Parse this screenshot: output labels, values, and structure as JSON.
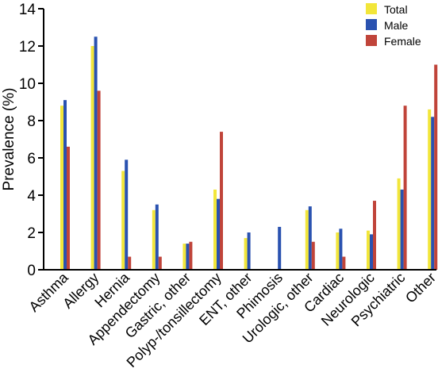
{
  "chart_data": {
    "type": "bar",
    "title": "",
    "xlabel": "",
    "ylabel": "Prevalence (%)",
    "ylim": [
      0,
      14
    ],
    "yticks": [
      0,
      2,
      4,
      6,
      8,
      10,
      12,
      14
    ],
    "grid": false,
    "legend_position": "top-right",
    "categories": [
      "Asthma",
      "Allergy",
      "Hernia",
      "Appendectomy",
      "Gastric, other",
      "Polyp-/tonsillectomy",
      "ENT, other",
      "Phimosis",
      "Urologic, other",
      "Cardiac",
      "Neurologic",
      "Psychiatric",
      "Other"
    ],
    "series": [
      {
        "name": "Total",
        "color": "#f2e63a",
        "values": [
          8.8,
          12.0,
          5.3,
          3.2,
          1.4,
          4.3,
          1.7,
          0,
          3.2,
          2.0,
          2.1,
          4.9,
          8.6
        ]
      },
      {
        "name": "Male",
        "color": "#2a52b0",
        "values": [
          9.1,
          12.5,
          5.9,
          3.5,
          1.4,
          3.8,
          2.0,
          2.3,
          3.4,
          2.2,
          1.9,
          4.3,
          8.2
        ]
      },
      {
        "name": "Female",
        "color": "#c0443a",
        "values": [
          6.6,
          9.6,
          0.7,
          0.7,
          1.5,
          7.4,
          0,
          0,
          1.5,
          0.7,
          3.7,
          8.8,
          11.0
        ]
      }
    ]
  }
}
